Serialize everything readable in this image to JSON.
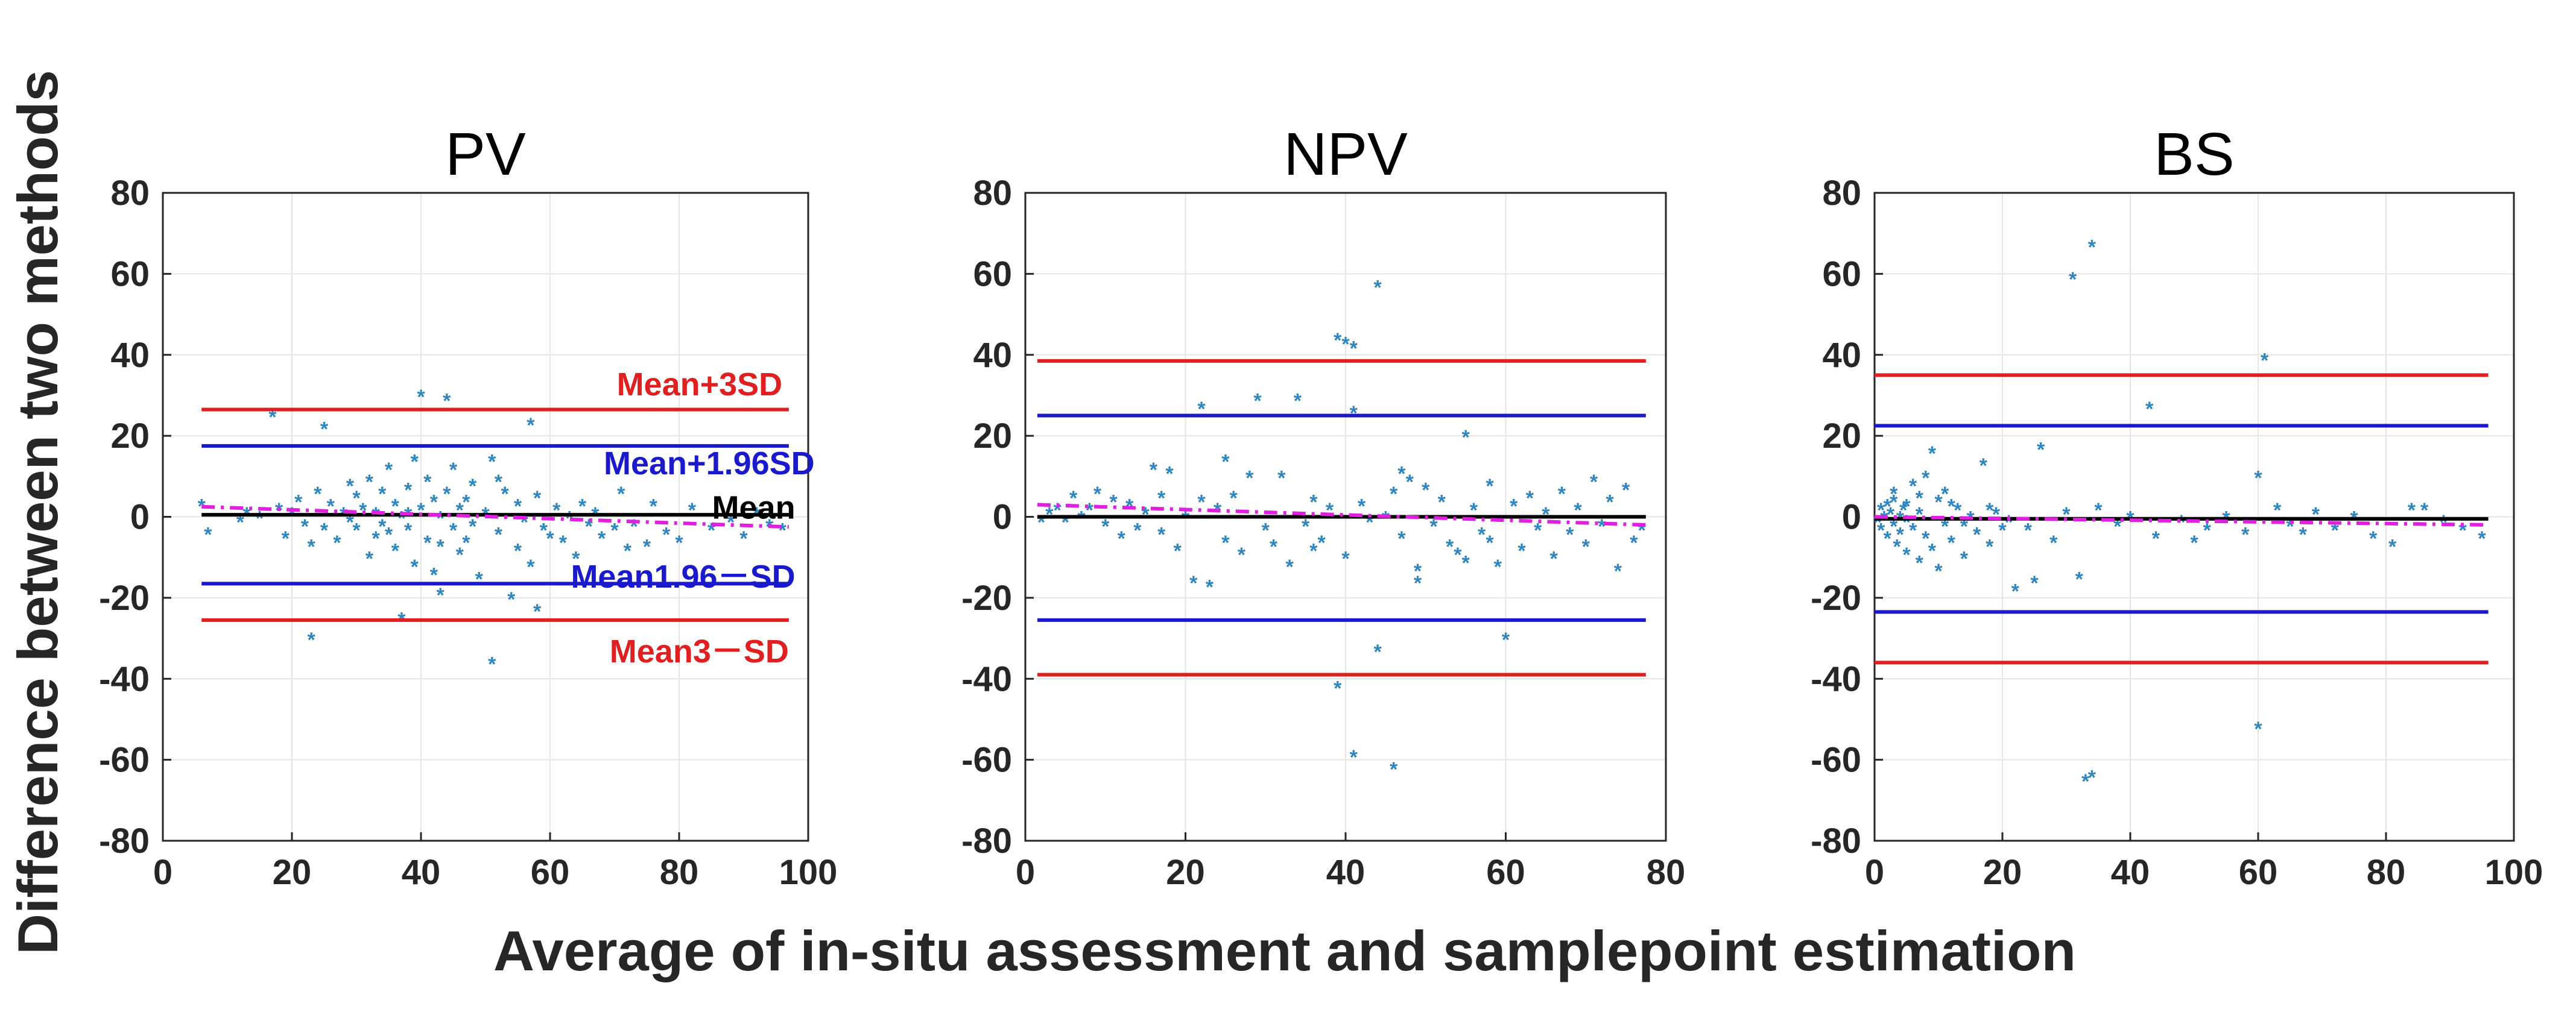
{
  "figure": {
    "ylabel": "Difference between two methods",
    "xlabel": "Average of in-situ assessment and samplepoint estimation"
  },
  "colors": {
    "upper3": "#e02020",
    "upper196": "#1a1acc",
    "mean": "#000000",
    "trend": "#e020e0",
    "points": "#2f86bf",
    "grid": "#e6e6e6"
  },
  "chart_data": [
    {
      "type": "scatter",
      "title": "PV",
      "xlim": [
        0,
        100
      ],
      "ylim": [
        -80,
        80
      ],
      "xticks": [
        0,
        20,
        40,
        60,
        80,
        100
      ],
      "yticks": [
        -80,
        -60,
        -40,
        -20,
        0,
        20,
        40,
        60,
        80
      ],
      "grid": true,
      "lines": {
        "x_range": [
          6,
          97
        ],
        "upper3": 26.5,
        "upper196": 17.5,
        "mean": 0.5,
        "lower196": -16.5,
        "lower3": -25.5,
        "trend": [
          2.5,
          -2.5
        ]
      },
      "annotations": [
        {
          "text": "Mean+3SD",
          "x": 96,
          "y": 33,
          "color": "upper3"
        },
        {
          "text": "Mean+1.96SD",
          "x": 101,
          "y": 13.5,
          "color": "upper196"
        },
        {
          "text": "Mean",
          "x": 98,
          "y": 2.5,
          "color": "mean"
        },
        {
          "text": "Mean1.96－SD",
          "x": 98,
          "y": -14.5,
          "color": "upper196"
        },
        {
          "text": "Mean3－SD",
          "x": 97,
          "y": -33,
          "color": "upper3"
        }
      ],
      "points": [
        [
          6,
          3
        ],
        [
          7,
          -4
        ],
        [
          12,
          -1
        ],
        [
          13,
          1
        ],
        [
          15,
          0
        ],
        [
          17,
          25
        ],
        [
          18,
          2
        ],
        [
          19,
          -5
        ],
        [
          20,
          1
        ],
        [
          21,
          4
        ],
        [
          22,
          -2
        ],
        [
          23,
          -7
        ],
        [
          23,
          -30
        ],
        [
          24,
          6
        ],
        [
          25,
          22
        ],
        [
          25,
          -3
        ],
        [
          26,
          3
        ],
        [
          27,
          -6
        ],
        [
          28,
          1
        ],
        [
          29,
          -1
        ],
        [
          30,
          5
        ],
        [
          30,
          -3
        ],
        [
          31,
          2
        ],
        [
          32,
          9
        ],
        [
          32,
          -10
        ],
        [
          33,
          1
        ],
        [
          34,
          -2
        ],
        [
          34,
          6
        ],
        [
          35,
          12
        ],
        [
          35,
          -4
        ],
        [
          36,
          3
        ],
        [
          36,
          -8
        ],
        [
          37,
          0
        ],
        [
          37,
          -25
        ],
        [
          38,
          7
        ],
        [
          38,
          -3
        ],
        [
          39,
          14
        ],
        [
          39,
          -12
        ],
        [
          40,
          30
        ],
        [
          40,
          2
        ],
        [
          41,
          -6
        ],
        [
          41,
          9
        ],
        [
          42,
          -14
        ],
        [
          42,
          4
        ],
        [
          43,
          0
        ],
        [
          43,
          -19
        ],
        [
          44,
          6
        ],
        [
          44,
          29
        ],
        [
          45,
          -3
        ],
        [
          45,
          12
        ],
        [
          46,
          -9
        ],
        [
          46,
          2
        ],
        [
          47,
          4
        ],
        [
          47,
          -6
        ],
        [
          48,
          8
        ],
        [
          48,
          -2
        ],
        [
          49,
          -15
        ],
        [
          50,
          1
        ],
        [
          51,
          -36
        ],
        [
          51,
          14
        ],
        [
          52,
          -4
        ],
        [
          53,
          6
        ],
        [
          54,
          -20
        ],
        [
          55,
          3
        ],
        [
          55,
          -8
        ],
        [
          56,
          -1
        ],
        [
          57,
          23
        ],
        [
          57,
          -12
        ],
        [
          58,
          -23
        ],
        [
          58,
          5
        ],
        [
          59,
          -3
        ],
        [
          60,
          -5
        ],
        [
          61,
          2
        ],
        [
          62,
          -6
        ],
        [
          63,
          0
        ],
        [
          64,
          -10
        ],
        [
          65,
          3
        ],
        [
          66,
          -2
        ],
        [
          67,
          1
        ],
        [
          68,
          -5
        ],
        [
          70,
          -3
        ],
        [
          71,
          6
        ],
        [
          72,
          -8
        ],
        [
          73,
          -2
        ],
        [
          75,
          -7
        ],
        [
          76,
          3
        ],
        [
          78,
          -4
        ],
        [
          80,
          -6
        ],
        [
          82,
          2
        ],
        [
          85,
          -3
        ],
        [
          88,
          -1
        ],
        [
          90,
          -5
        ],
        [
          92,
          1
        ],
        [
          94,
          -2
        ],
        [
          96,
          -3
        ],
        [
          29,
          8
        ],
        [
          33,
          -5
        ],
        [
          38,
          1
        ],
        [
          43,
          -7
        ],
        [
          52,
          9
        ]
      ]
    },
    {
      "type": "scatter",
      "title": "NPV",
      "xlim": [
        0,
        80
      ],
      "ylim": [
        -80,
        80
      ],
      "xticks": [
        0,
        20,
        40,
        60,
        80
      ],
      "yticks": [
        -80,
        -60,
        -40,
        -20,
        0,
        20,
        40,
        60,
        80
      ],
      "grid": true,
      "lines": {
        "x_range": [
          1.5,
          77.5
        ],
        "upper3": 38.5,
        "upper196": 25,
        "mean": 0,
        "lower196": -25.5,
        "lower3": -39,
        "trend": [
          3,
          -2
        ]
      },
      "annotations": [],
      "points": [
        [
          2,
          -1
        ],
        [
          3,
          1
        ],
        [
          4,
          2
        ],
        [
          5,
          -1
        ],
        [
          6,
          5
        ],
        [
          7,
          0
        ],
        [
          8,
          2
        ],
        [
          9,
          6
        ],
        [
          10,
          -2
        ],
        [
          11,
          4
        ],
        [
          12,
          -5
        ],
        [
          13,
          3
        ],
        [
          14,
          -3
        ],
        [
          15,
          1
        ],
        [
          16,
          12
        ],
        [
          17,
          -4
        ],
        [
          17,
          5
        ],
        [
          18,
          11
        ],
        [
          19,
          -8
        ],
        [
          20,
          0
        ],
        [
          21,
          -16
        ],
        [
          22,
          27
        ],
        [
          22,
          4
        ],
        [
          23,
          -17
        ],
        [
          24,
          2
        ],
        [
          25,
          14
        ],
        [
          25,
          -6
        ],
        [
          26,
          5
        ],
        [
          27,
          -9
        ],
        [
          28,
          10
        ],
        [
          29,
          29
        ],
        [
          30,
          -3
        ],
        [
          31,
          -7
        ],
        [
          32,
          10
        ],
        [
          33,
          -12
        ],
        [
          34,
          29
        ],
        [
          35,
          -2
        ],
        [
          36,
          4
        ],
        [
          37,
          -6
        ],
        [
          38,
          2
        ],
        [
          39,
          44
        ],
        [
          39,
          -42
        ],
        [
          40,
          43
        ],
        [
          40,
          -10
        ],
        [
          41,
          42
        ],
        [
          41,
          26
        ],
        [
          41,
          -59
        ],
        [
          42,
          3
        ],
        [
          43,
          -1
        ],
        [
          44,
          57
        ],
        [
          44,
          -33
        ],
        [
          45,
          0
        ],
        [
          46,
          -62
        ],
        [
          46,
          6
        ],
        [
          47,
          -5
        ],
        [
          48,
          9
        ],
        [
          49,
          -16
        ],
        [
          49,
          -13
        ],
        [
          50,
          7
        ],
        [
          51,
          -2
        ],
        [
          52,
          4
        ],
        [
          53,
          -7
        ],
        [
          54,
          -9
        ],
        [
          55,
          20
        ],
        [
          55,
          -11
        ],
        [
          56,
          2
        ],
        [
          57,
          -4
        ],
        [
          58,
          8
        ],
        [
          59,
          -12
        ],
        [
          60,
          -30
        ],
        [
          61,
          3
        ],
        [
          62,
          -8
        ],
        [
          63,
          5
        ],
        [
          64,
          -3
        ],
        [
          65,
          1
        ],
        [
          66,
          -10
        ],
        [
          67,
          6
        ],
        [
          68,
          -4
        ],
        [
          69,
          2
        ],
        [
          70,
          -7
        ],
        [
          71,
          9
        ],
        [
          72,
          -2
        ],
        [
          73,
          4
        ],
        [
          74,
          -13
        ],
        [
          75,
          7
        ],
        [
          76,
          -6
        ],
        [
          77,
          -3
        ],
        [
          36,
          -8
        ],
        [
          47,
          11
        ],
        [
          58,
          -6
        ]
      ]
    },
    {
      "type": "scatter",
      "title": "BS",
      "xlim": [
        0,
        100
      ],
      "ylim": [
        -80,
        80
      ],
      "xticks": [
        0,
        20,
        40,
        60,
        80,
        100
      ],
      "yticks": [
        -80,
        -60,
        -40,
        -20,
        0,
        20,
        40,
        60,
        80
      ],
      "grid": true,
      "lines": {
        "x_range": [
          0,
          96
        ],
        "upper3": 35,
        "upper196": 22.5,
        "mean": -0.5,
        "lower196": -23.5,
        "lower3": -36,
        "trend": [
          0,
          -2
        ]
      },
      "annotations": [],
      "points": [
        [
          0.5,
          -1
        ],
        [
          1,
          2
        ],
        [
          1,
          -3
        ],
        [
          1.5,
          0
        ],
        [
          2,
          3
        ],
        [
          2,
          -5
        ],
        [
          2.5,
          1
        ],
        [
          3,
          -2
        ],
        [
          3,
          4
        ],
        [
          3.5,
          -7
        ],
        [
          4,
          0
        ],
        [
          4,
          -4
        ],
        [
          4.5,
          2
        ],
        [
          5,
          -9
        ],
        [
          5,
          3
        ],
        [
          6,
          -3
        ],
        [
          6,
          8
        ],
        [
          7,
          -11
        ],
        [
          7,
          1
        ],
        [
          8,
          10
        ],
        [
          8,
          -5
        ],
        [
          9,
          16
        ],
        [
          9,
          -8
        ],
        [
          10,
          4
        ],
        [
          10,
          -13
        ],
        [
          11,
          -2
        ],
        [
          11,
          6
        ],
        [
          12,
          -6
        ],
        [
          13,
          2
        ],
        [
          14,
          -10
        ],
        [
          15,
          0
        ],
        [
          16,
          -4
        ],
        [
          17,
          13
        ],
        [
          18,
          -7
        ],
        [
          19,
          1
        ],
        [
          20,
          -3
        ],
        [
          22,
          -18
        ],
        [
          24,
          -3
        ],
        [
          25,
          -16
        ],
        [
          26,
          17
        ],
        [
          28,
          -6
        ],
        [
          30,
          1
        ],
        [
          31,
          59
        ],
        [
          32,
          -15
        ],
        [
          33,
          -65
        ],
        [
          34,
          -64
        ],
        [
          34,
          67
        ],
        [
          35,
          2
        ],
        [
          38,
          -2
        ],
        [
          40,
          0
        ],
        [
          43,
          27
        ],
        [
          44,
          -5
        ],
        [
          48,
          -1
        ],
        [
          50,
          -6
        ],
        [
          52,
          -3
        ],
        [
          55,
          0
        ],
        [
          58,
          -4
        ],
        [
          60,
          10
        ],
        [
          60,
          -52
        ],
        [
          61,
          39
        ],
        [
          63,
          2
        ],
        [
          65,
          -2
        ],
        [
          67,
          -4
        ],
        [
          69,
          1
        ],
        [
          72,
          -3
        ],
        [
          75,
          0
        ],
        [
          78,
          -5
        ],
        [
          81,
          -7
        ],
        [
          84,
          2
        ],
        [
          86,
          2
        ],
        [
          89,
          -1
        ],
        [
          92,
          -3
        ],
        [
          95,
          -5
        ],
        [
          3,
          6
        ],
        [
          5,
          -1
        ],
        [
          7,
          5
        ],
        [
          12,
          3
        ],
        [
          14,
          -2
        ],
        [
          18,
          2
        ],
        [
          21,
          -1
        ]
      ]
    }
  ]
}
